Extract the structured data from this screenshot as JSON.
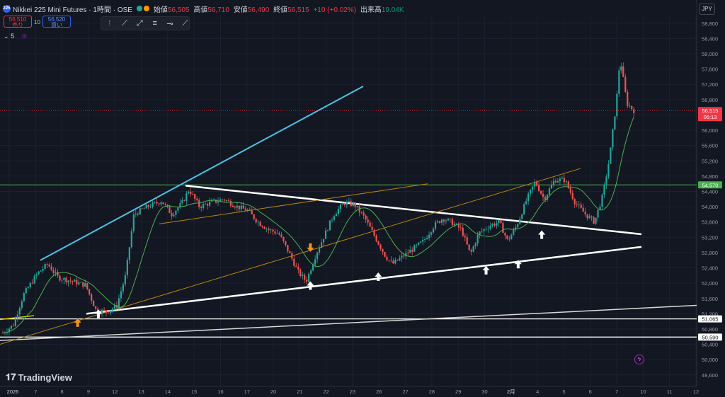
{
  "header": {
    "logo_text": "225",
    "symbol": "Nikkei 225 Mini Futures · 1時間 · OSE",
    "open_label": "始値",
    "open": "56,505",
    "high_label": "高値",
    "high": "56,710",
    "low_label": "安値",
    "low": "56,490",
    "close_label": "終値",
    "close": "56,515",
    "change": "+10 (+0.02%)",
    "volume_label": "出来高",
    "volume": "19.04K",
    "dot_colors": [
      "#26a69a",
      "#ff9800"
    ],
    "currency": "JPY"
  },
  "trade": {
    "sell_price": "56,510",
    "sell_label": "売り",
    "spread": "10",
    "buy_price": "56,520",
    "buy_label": "買い"
  },
  "indicator": {
    "label": "5"
  },
  "toolbar": {
    "icons": [
      "drag-handle-icon",
      "trend-line-icon",
      "ray-icon",
      "parallel-channel-icon",
      "horizontal-line-icon",
      "extended-line-icon"
    ]
  },
  "branding": {
    "name": "TradingView"
  },
  "colors": {
    "up": "#26a69a",
    "down": "#ef5350",
    "ma": "#4caf50",
    "channel_top": "#4dc3e6",
    "support": "#ffffff",
    "green_level": "#4caf50",
    "fib_line": "#b8860b",
    "last_price": "#f23645",
    "arrow_orange": "#f7931a",
    "arrow_white": "#ffffff"
  },
  "chart_data": {
    "type": "candlestick",
    "currency": "JPY",
    "y_ticks": [
      49600,
      50000,
      50400,
      50800,
      51200,
      51600,
      52000,
      52400,
      52800,
      53200,
      53600,
      54000,
      54400,
      54800,
      55200,
      55600,
      56000,
      56400,
      56800,
      57200,
      57600,
      58000,
      58400,
      58800
    ],
    "y_tick_labels": [
      "49,600",
      "50,000",
      "50,400",
      "50,800",
      "51,200",
      "51,600",
      "52,000",
      "52,400",
      "52,800",
      "53,200",
      "53,600",
      "54,000",
      "54,400",
      "54,800",
      "55,200",
      "55,600",
      "56,000",
      "56,400",
      "56,800",
      "57,200",
      "57,600",
      "58,000",
      "58,400",
      "58,800"
    ],
    "x_ticks": [
      "2026",
      "7",
      "8",
      "9",
      "12",
      "13",
      "14",
      "15",
      "16",
      "17",
      "20",
      "21",
      "22",
      "23",
      "26",
      "27",
      "28",
      "29",
      "30",
      "2月",
      "4",
      "5",
      "6",
      "7",
      "10",
      "11",
      "12"
    ],
    "y_range": [
      49300,
      59000
    ],
    "price_labels": [
      {
        "value": 56515,
        "text": "56,515",
        "sub": "06:13",
        "color": "#f23645"
      },
      {
        "value": 54570,
        "text": "54,570",
        "color": "#4caf50"
      },
      {
        "value": 51065,
        "text": "51,065",
        "color": "#ffffff"
      },
      {
        "value": 50590,
        "text": "50,590",
        "color": "#ffffff"
      }
    ],
    "series_close_points": [
      [
        0.0,
        50700
      ],
      [
        0.015,
        50900
      ],
      [
        0.03,
        51700
      ],
      [
        0.05,
        52250
      ],
      [
        0.065,
        52500
      ],
      [
        0.08,
        52150
      ],
      [
        0.1,
        52050
      ],
      [
        0.12,
        51950
      ],
      [
        0.135,
        51300
      ],
      [
        0.15,
        51250
      ],
      [
        0.165,
        51400
      ],
      [
        0.178,
        52200
      ],
      [
        0.19,
        53800
      ],
      [
        0.21,
        54000
      ],
      [
        0.23,
        54150
      ],
      [
        0.245,
        53800
      ],
      [
        0.26,
        54100
      ],
      [
        0.27,
        54450
      ],
      [
        0.285,
        54000
      ],
      [
        0.3,
        54100
      ],
      [
        0.32,
        54200
      ],
      [
        0.34,
        54000
      ],
      [
        0.355,
        53900
      ],
      [
        0.37,
        53600
      ],
      [
        0.385,
        53400
      ],
      [
        0.4,
        53300
      ],
      [
        0.415,
        52800
      ],
      [
        0.428,
        52300
      ],
      [
        0.44,
        52050
      ],
      [
        0.455,
        52800
      ],
      [
        0.47,
        53400
      ],
      [
        0.48,
        53800
      ],
      [
        0.495,
        54100
      ],
      [
        0.51,
        54050
      ],
      [
        0.525,
        53700
      ],
      [
        0.54,
        53200
      ],
      [
        0.555,
        52700
      ],
      [
        0.565,
        52500
      ],
      [
        0.58,
        52700
      ],
      [
        0.595,
        52900
      ],
      [
        0.61,
        53100
      ],
      [
        0.625,
        53500
      ],
      [
        0.638,
        53700
      ],
      [
        0.65,
        53600
      ],
      [
        0.665,
        53400
      ],
      [
        0.678,
        52750
      ],
      [
        0.69,
        53300
      ],
      [
        0.705,
        53500
      ],
      [
        0.72,
        53600
      ],
      [
        0.732,
        53100
      ],
      [
        0.745,
        53500
      ],
      [
        0.76,
        54200
      ],
      [
        0.772,
        54650
      ],
      [
        0.785,
        54200
      ],
      [
        0.8,
        54700
      ],
      [
        0.815,
        54700
      ],
      [
        0.83,
        54100
      ],
      [
        0.845,
        53800
      ],
      [
        0.858,
        53600
      ],
      [
        0.87,
        54300
      ],
      [
        0.88,
        55300
      ],
      [
        0.89,
        56800
      ],
      [
        0.895,
        57900
      ],
      [
        0.905,
        56700
      ],
      [
        0.915,
        56515
      ]
    ],
    "lines": [
      {
        "name": "upper-trend",
        "from": [
          "6",
          52600
        ],
        "to": [
          "22",
          57150
        ]
      },
      {
        "name": "wedge-upper",
        "from": [
          "14",
          54550
        ],
        "to": [
          "10",
          53280
        ]
      },
      {
        "name": "wedge-lower",
        "from": [
          "8",
          51200
        ],
        "to": [
          "10",
          52950
        ]
      },
      {
        "name": "long-support",
        "from": [
          "2026",
          50500
        ],
        "to": [
          "12",
          51420
        ]
      },
      {
        "name": "fib-rising",
        "from": [
          "2026",
          50400
        ],
        "to": [
          "5",
          55000
        ]
      },
      {
        "name": "fib-upper",
        "from": [
          "14",
          53550
        ],
        "to": [
          "29",
          54600
        ]
      },
      {
        "name": "yellow-short",
        "from": [
          "2026",
          51050
        ],
        "to": [
          "7",
          51150
        ]
      }
    ],
    "horizontal_levels": [
      54570,
      51065,
      50590
    ],
    "arrows_up_white": [
      [
        "9",
        51180
      ],
      [
        "21",
        51920
      ],
      [
        "26",
        52150
      ],
      [
        "30",
        52320
      ],
      [
        "2月",
        52480
      ],
      [
        "4",
        53250
      ]
    ],
    "arrows_up_orange": [
      [
        "8",
        50950
      ]
    ],
    "arrows_down_orange": [
      [
        "21",
        52950
      ]
    ]
  }
}
